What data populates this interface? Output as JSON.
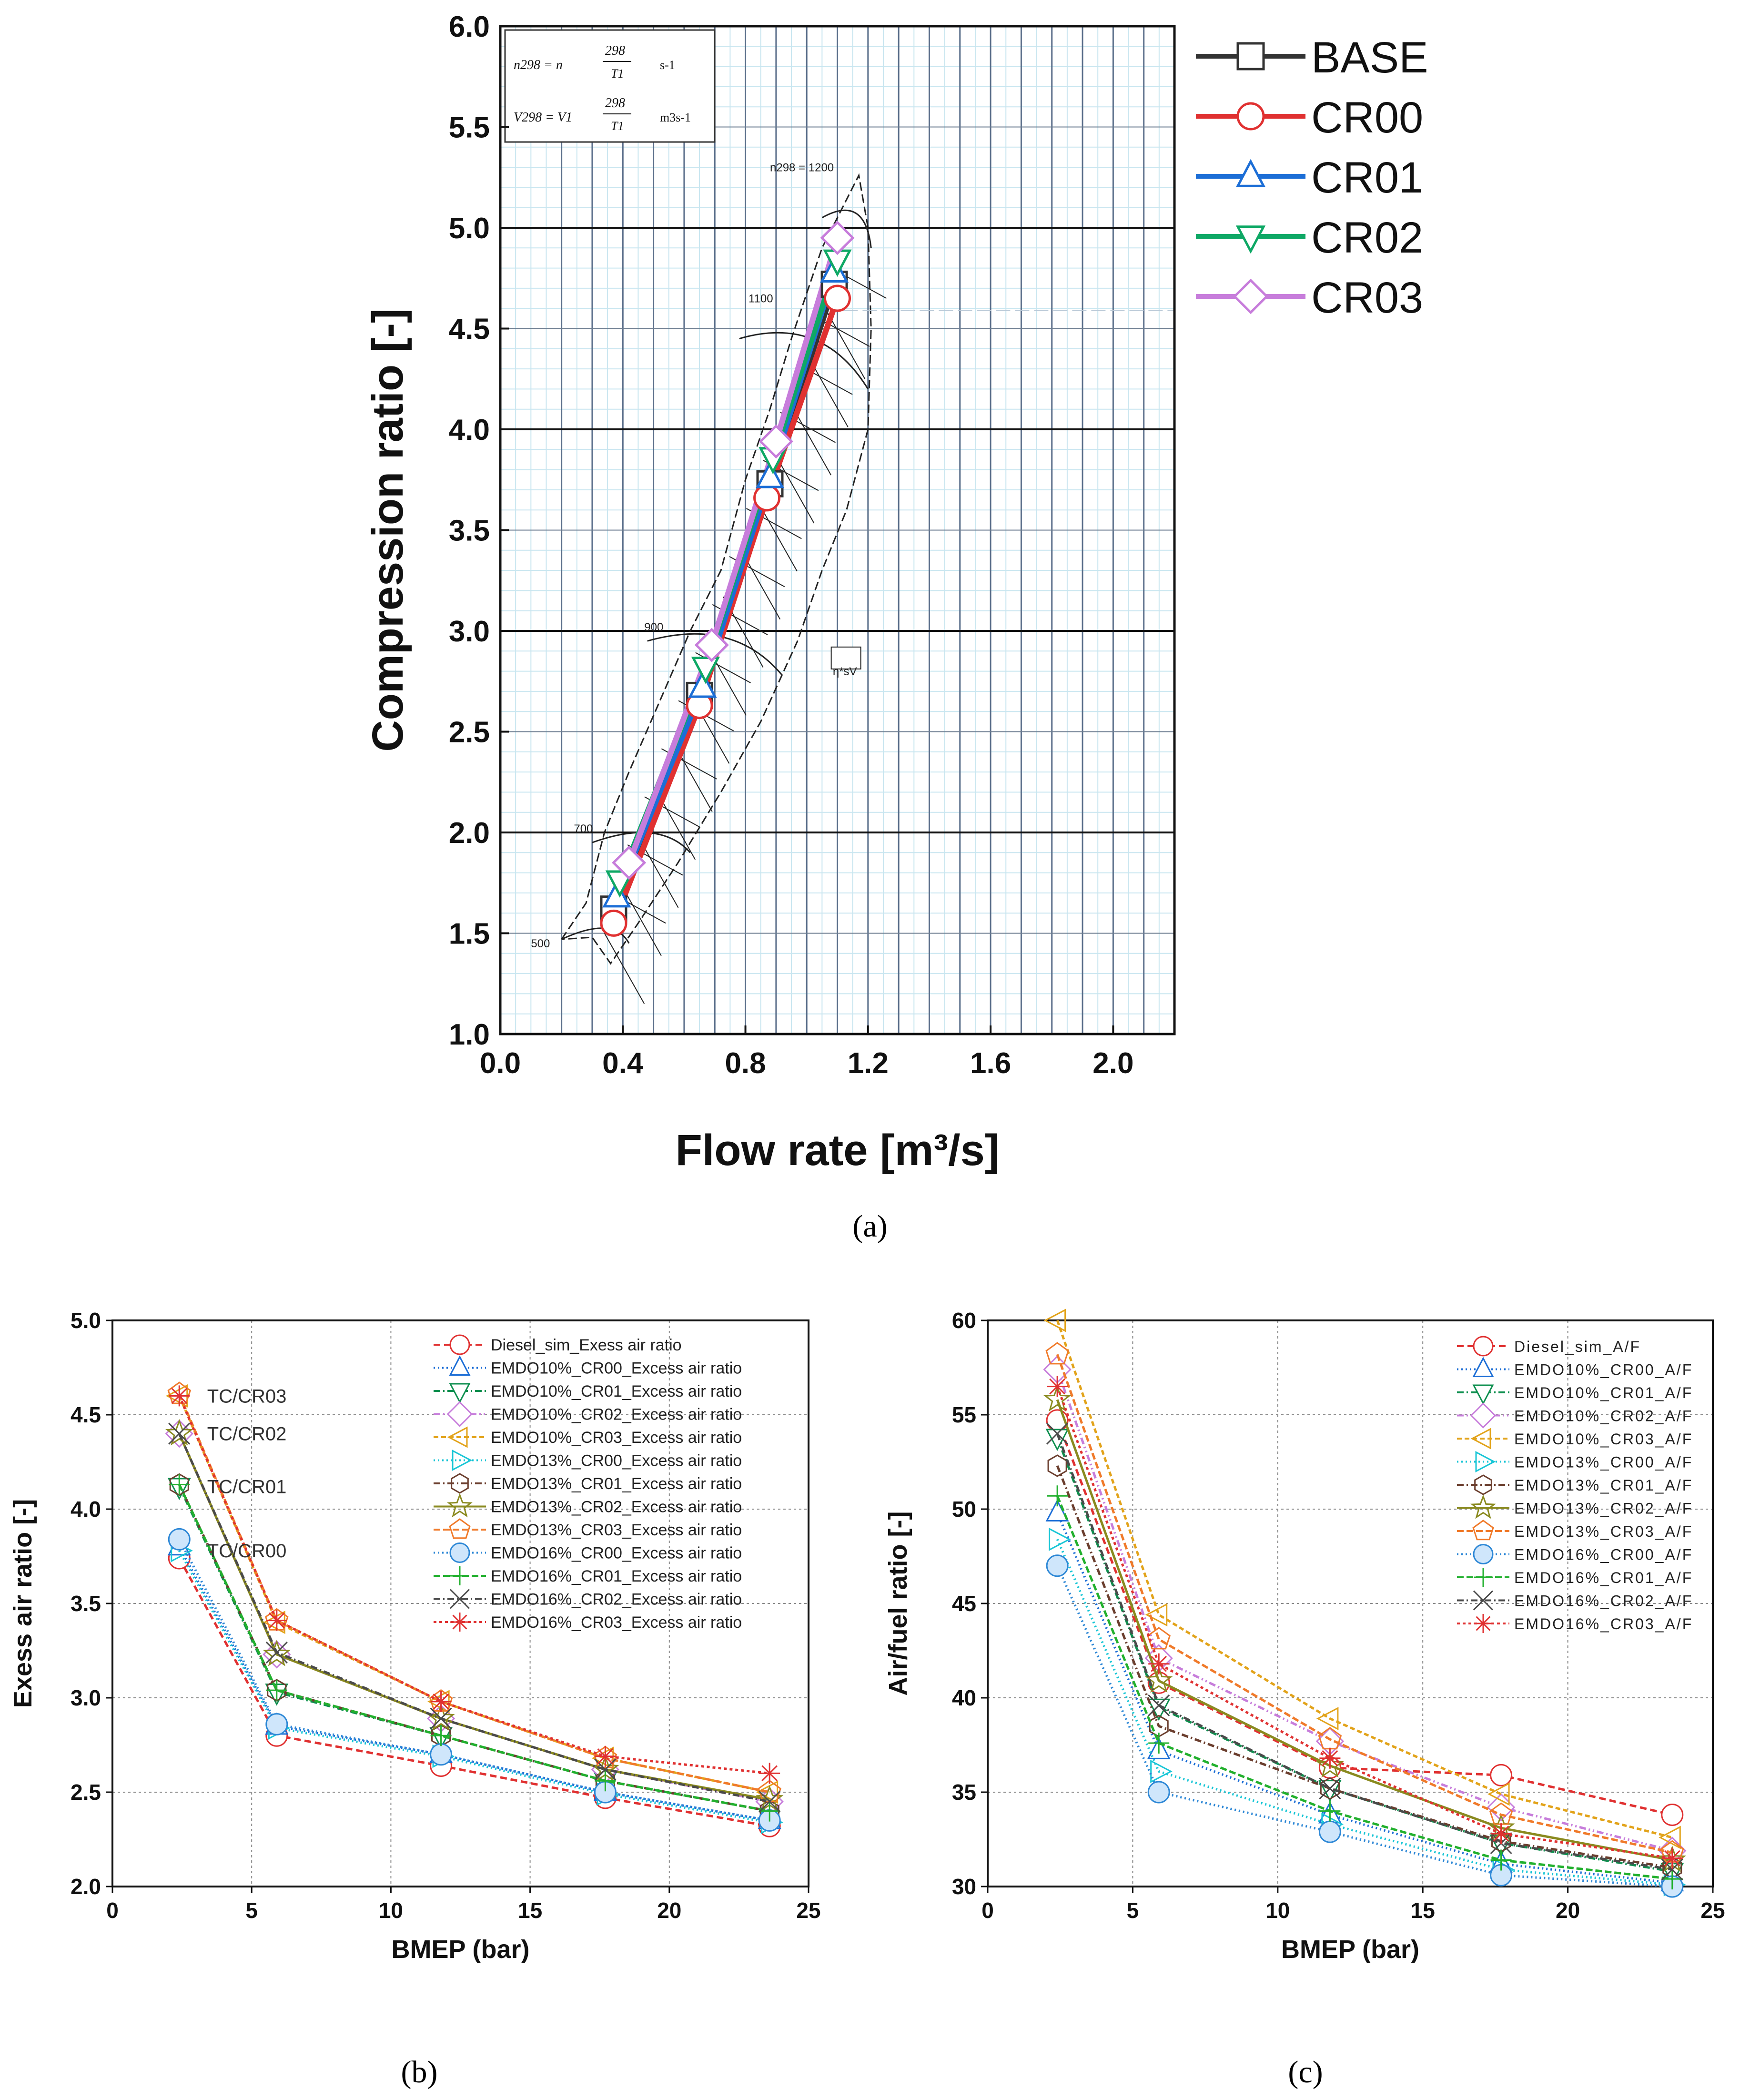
{
  "panel_labels": {
    "a": "(a)",
    "b": "(b)",
    "c": "(c)"
  },
  "chart_data": [
    {
      "id": "a",
      "type": "line",
      "xlabel": "Flow rate [m³/s]",
      "ylabel": "Compression ratio [-]",
      "xlim": [
        0.0,
        2.2
      ],
      "ylim": [
        1.0,
        6.0
      ],
      "xticks": [
        0.0,
        0.4,
        0.8,
        1.2,
        1.6,
        2.0
      ],
      "xtick_labels": [
        "0.0",
        "0.4",
        "0.8",
        "1.2",
        "1.6",
        "2.0"
      ],
      "yticks": [
        1.0,
        1.5,
        2.0,
        2.5,
        3.0,
        3.5,
        4.0,
        4.5,
        5.0,
        5.5,
        6.0
      ],
      "ytick_labels": [
        "1.0",
        "1.5",
        "2.0",
        "2.5",
        "3.0",
        "3.5",
        "4.0",
        "4.5",
        "5.0",
        "5.5",
        "6.0"
      ],
      "map_annotations": {
        "speed_lines": [
          "500",
          "700",
          "900",
          "1100",
          "n298 = 1200"
        ],
        "efficiency_label": "η*sV",
        "formula1_lhs": "n298 = n",
        "formula1_frac": "298",
        "formula1_den": "T1",
        "formula1_unit": "s-1",
        "formula2_lhs": "V298 = V1",
        "formula2_frac": "298",
        "formula2_den": "T1",
        "formula2_unit": "m3s-1"
      },
      "series": [
        {
          "name": "BASE",
          "color": "#333333",
          "marker": "square",
          "points": [
            [
              0.37,
              1.62
            ],
            [
              0.65,
              2.68
            ],
            [
              0.88,
              3.73
            ],
            [
              1.09,
              4.72
            ]
          ]
        },
        {
          "name": "CR00",
          "color": "#e03131",
          "marker": "circle",
          "points": [
            [
              0.37,
              1.55
            ],
            [
              0.65,
              2.63
            ],
            [
              0.87,
              3.66
            ],
            [
              1.1,
              4.65
            ]
          ]
        },
        {
          "name": "CR01",
          "color": "#1c6ed6",
          "marker": "triangle-up",
          "points": [
            [
              0.38,
              1.68
            ],
            [
              0.66,
              2.72
            ],
            [
              0.88,
              3.76
            ],
            [
              1.09,
              4.78
            ]
          ]
        },
        {
          "name": "CR02",
          "color": "#0ea865",
          "marker": "triangle-down",
          "points": [
            [
              0.39,
              1.76
            ],
            [
              0.67,
              2.82
            ],
            [
              0.89,
              3.86
            ],
            [
              1.1,
              4.84
            ]
          ]
        },
        {
          "name": "CR03",
          "color": "#c77ddb",
          "marker": "diamond",
          "points": [
            [
              0.42,
              1.85
            ],
            [
              0.69,
              2.93
            ],
            [
              0.9,
              3.94
            ],
            [
              1.1,
              4.95
            ]
          ]
        }
      ]
    },
    {
      "id": "b",
      "type": "line",
      "xlabel": "BMEP (bar)",
      "ylabel": "Exess air ratio [-]",
      "xlim": [
        0,
        25
      ],
      "ylim": [
        2.0,
        5.0
      ],
      "xticks": [
        0,
        5,
        10,
        15,
        20,
        25
      ],
      "xtick_labels": [
        "0",
        "5",
        "10",
        "15",
        "20",
        "25"
      ],
      "yticks": [
        2.0,
        2.5,
        3.0,
        3.5,
        4.0,
        4.5,
        5.0
      ],
      "ytick_labels": [
        "2.0",
        "2.5",
        "3.0",
        "3.5",
        "4.0",
        "4.5",
        "5.0"
      ],
      "x": [
        2.4,
        5.9,
        11.8,
        17.7,
        23.6
      ],
      "annotations": [
        "TC/CR03",
        "TC/CR02",
        "TC/CR01",
        "TC/CR00"
      ],
      "series": [
        {
          "name": "Diesel_sim_Exess air ratio",
          "color": "#e03131",
          "marker": "circle",
          "dash": "14,8",
          "values": [
            3.74,
            2.8,
            2.64,
            2.47,
            2.32
          ]
        },
        {
          "name": "EMDO10%_CR00_Excess air ratio",
          "color": "#1c6ed6",
          "marker": "triangle-up",
          "dash": "3,6",
          "values": [
            3.8,
            2.85,
            2.7,
            2.5,
            2.35
          ]
        },
        {
          "name": "EMDO10%_CR01_Excess air ratio",
          "color": "#0e8f4f",
          "marker": "triangle-down",
          "dash": "14,6,3,6",
          "values": [
            4.12,
            3.03,
            2.8,
            2.56,
            2.4
          ]
        },
        {
          "name": "EMDO10%_CR02_Excess air ratio",
          "color": "#c77ddb",
          "marker": "diamond",
          "dash": "14,6,3,6,3,6",
          "values": [
            4.4,
            3.23,
            2.89,
            2.62,
            2.45
          ]
        },
        {
          "name": "EMDO10%_CR03_Excess air ratio",
          "color": "#e2a31a",
          "marker": "triangle-left",
          "dash": "10,6",
          "values": [
            4.6,
            3.4,
            2.98,
            2.68,
            2.5
          ]
        },
        {
          "name": "EMDO13%_CR00_Excess air ratio",
          "color": "#19c6d6",
          "marker": "triangle-right",
          "dash": "3,6",
          "values": [
            3.78,
            2.84,
            2.69,
            2.49,
            2.34
          ]
        },
        {
          "name": "EMDO13%_CR01_Excess air ratio",
          "color": "#6b3e2e",
          "marker": "hexagon",
          "dash": "14,6,3,6",
          "values": [
            4.13,
            3.04,
            2.8,
            2.56,
            2.4
          ]
        },
        {
          "name": "EMDO13%_CR02_Excess air ratio",
          "color": "#8a8a1f",
          "marker": "star",
          "dash": "none",
          "values": [
            4.4,
            3.23,
            2.89,
            2.62,
            2.46
          ]
        },
        {
          "name": "EMDO13%_CR03_Excess air ratio",
          "color": "#f07a2a",
          "marker": "pentagon",
          "dash": "14,6",
          "values": [
            4.61,
            3.41,
            2.98,
            2.68,
            2.5
          ]
        },
        {
          "name": "EMDO16%_CR00_Excess air ratio",
          "color": "#2e88d6",
          "marker": "circle-filled",
          "dash": "3,6",
          "values": [
            3.84,
            2.86,
            2.7,
            2.5,
            2.35
          ]
        },
        {
          "name": "EMDO16%_CR01_Excess air ratio",
          "color": "#22b02e",
          "marker": "plus",
          "dash": "14,6",
          "values": [
            4.13,
            3.04,
            2.8,
            2.56,
            2.4
          ]
        },
        {
          "name": "EMDO16%_CR02_Excess air ratio",
          "color": "#4a4a4a",
          "marker": "cross",
          "dash": "14,6,3,6",
          "values": [
            4.4,
            3.24,
            2.89,
            2.62,
            2.45
          ]
        },
        {
          "name": "EMDO16%_CR03_Excess air ratio",
          "color": "#e03131",
          "marker": "asterisk",
          "dash": "6,6",
          "values": [
            4.6,
            3.41,
            2.98,
            2.69,
            2.6
          ]
        }
      ]
    },
    {
      "id": "c",
      "type": "line",
      "xlabel": "BMEP (bar)",
      "ylabel": "Air/fuel ratio [-]",
      "xlim": [
        0,
        25
      ],
      "ylim": [
        30,
        60
      ],
      "xticks": [
        0,
        5,
        10,
        15,
        20,
        25
      ],
      "xtick_labels": [
        "0",
        "5",
        "10",
        "15",
        "20",
        "25"
      ],
      "yticks": [
        30,
        35,
        40,
        45,
        50,
        55,
        60
      ],
      "ytick_labels": [
        "30",
        "35",
        "40",
        "45",
        "50",
        "55",
        "60"
      ],
      "x": [
        2.4,
        5.9,
        11.8,
        17.7,
        23.6
      ],
      "series": [
        {
          "name": "Diesel_sim_A/F",
          "color": "#e03131",
          "marker": "circle",
          "dash": "14,8",
          "values": [
            54.7,
            40.8,
            36.3,
            35.9,
            33.8
          ]
        },
        {
          "name": "EMDO10%_CR00_A/F",
          "color": "#1c6ed6",
          "marker": "triangle-up",
          "dash": "3,6",
          "values": [
            49.8,
            37.2,
            33.8,
            31.2,
            30.2
          ]
        },
        {
          "name": "EMDO10%_CR01_A/F",
          "color": "#0e8f4f",
          "marker": "triangle-down",
          "dash": "14,6,3,6",
          "values": [
            53.8,
            39.5,
            35.2,
            32.3,
            30.8
          ]
        },
        {
          "name": "EMDO10%_CR02_A/F",
          "color": "#c77ddb",
          "marker": "diamond",
          "dash": "14,6,3,6,3,6",
          "values": [
            57.4,
            42.1,
            37.7,
            34.2,
            31.9
          ]
        },
        {
          "name": "EMDO10%_CR03_A/F",
          "color": "#e2a31a",
          "marker": "triangle-left",
          "dash": "10,6",
          "values": [
            60.0,
            44.4,
            38.9,
            34.9,
            32.6
          ]
        },
        {
          "name": "EMDO13%_CR00_A/F",
          "color": "#19c6d6",
          "marker": "triangle-right",
          "dash": "3,6",
          "values": [
            48.4,
            36.1,
            33.3,
            30.9,
            30.1
          ]
        },
        {
          "name": "EMDO13%_CR01_A/F",
          "color": "#6b3e2e",
          "marker": "hexagon",
          "dash": "14,6,3,6",
          "values": [
            52.3,
            38.5,
            35.2,
            32.4,
            31.0
          ]
        },
        {
          "name": "EMDO13%_CR02_A/F",
          "color": "#8a8a1f",
          "marker": "star",
          "dash": "none",
          "values": [
            55.8,
            40.9,
            36.4,
            33.1,
            31.4
          ]
        },
        {
          "name": "EMDO13%_CR03_A/F",
          "color": "#f07a2a",
          "marker": "pentagon",
          "dash": "14,6",
          "values": [
            58.2,
            43.1,
            37.8,
            33.8,
            31.8
          ]
        },
        {
          "name": "EMDO16%_CR00_A/F",
          "color": "#2e88d6",
          "marker": "circle-filled",
          "dash": "3,6",
          "values": [
            47.0,
            35.0,
            32.9,
            30.6,
            30.0
          ]
        },
        {
          "name": "EMDO16%_CR01_A/F",
          "color": "#22b02e",
          "marker": "plus",
          "dash": "14,6",
          "values": [
            50.7,
            37.6,
            34.0,
            31.4,
            30.4
          ]
        },
        {
          "name": "EMDO16%_CR02_A/F",
          "color": "#4a4a4a",
          "marker": "cross",
          "dash": "14,6,3,6",
          "values": [
            54.0,
            39.6,
            35.2,
            32.3,
            30.9
          ]
        },
        {
          "name": "EMDO16%_CR03_A/F",
          "color": "#e03131",
          "marker": "asterisk",
          "dash": "6,6",
          "values": [
            56.5,
            41.8,
            36.8,
            32.8,
            31.5
          ]
        }
      ]
    }
  ]
}
